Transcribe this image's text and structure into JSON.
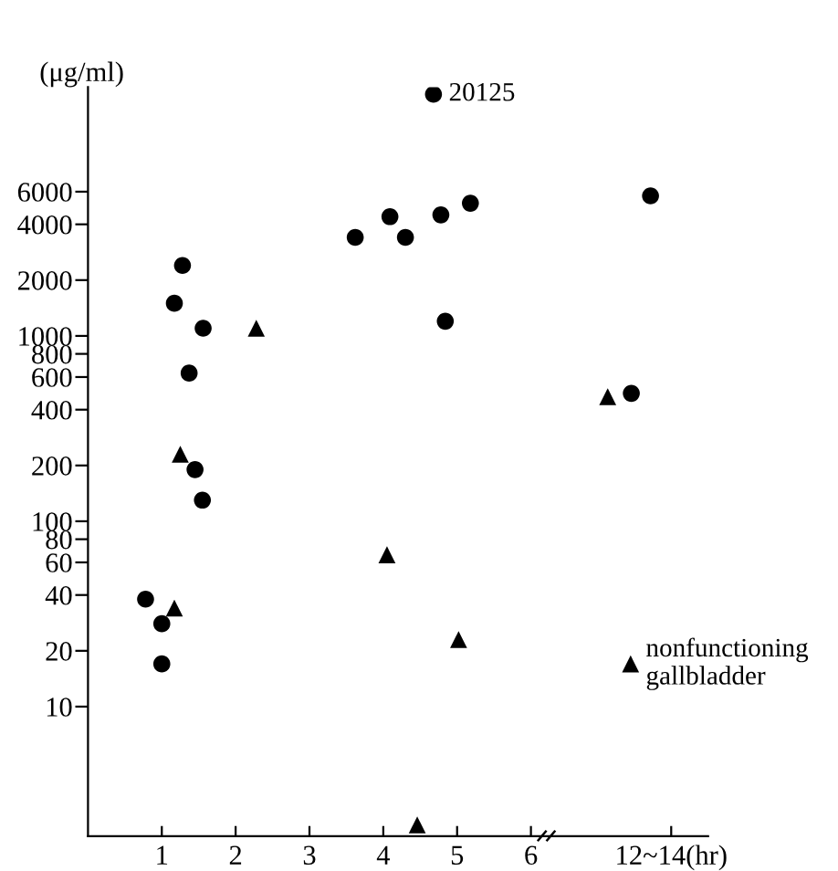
{
  "chart_data": {
    "type": "scatter",
    "ylabel": "(μg/ml)",
    "series": [
      {
        "color": "#000000",
        "marker": "circle",
        "x": [
          1.28,
          1.17,
          1.56,
          1.37,
          1.45,
          1.55,
          0.78,
          1.0,
          1.0,
          3.62,
          4.09,
          4.3,
          4.68,
          4.78,
          5.18,
          4.84,
          7.62,
          7.36
        ],
        "values": [
          2400,
          1500,
          1100,
          630,
          190,
          130,
          38,
          28,
          17,
          3400,
          4400,
          3400,
          20125,
          4500,
          5200,
          1200,
          5700,
          490
        ]
      },
      {
        "color": "#000000",
        "marker": "triangle",
        "x": [
          2.28,
          1.25,
          1.17,
          4.05,
          4.46,
          5.02,
          7.04,
          7.35
        ],
        "values": [
          1100,
          230,
          34,
          66,
          2.3,
          23,
          470,
          17
        ]
      }
    ],
    "annotations": [
      {
        "text": "20125",
        "x": 4.68,
        "y": 20125
      },
      {
        "text": "nonfunctioning\ngallbladder",
        "x": 7.35,
        "y": 17
      }
    ],
    "log": "y",
    "xlim": [
      0,
      8.4
    ],
    "xticks": [
      1,
      2,
      3,
      4,
      5,
      6,
      {
        "value": 7.9,
        "label": "12~14(hr)"
      }
    ],
    "ylim": [
      2.0,
      22000
    ],
    "yticks": [
      10,
      20,
      40,
      60,
      80,
      100,
      200,
      400,
      600,
      800,
      1000,
      2000,
      4000,
      6000
    ],
    "grid": false,
    "legend": false
  }
}
